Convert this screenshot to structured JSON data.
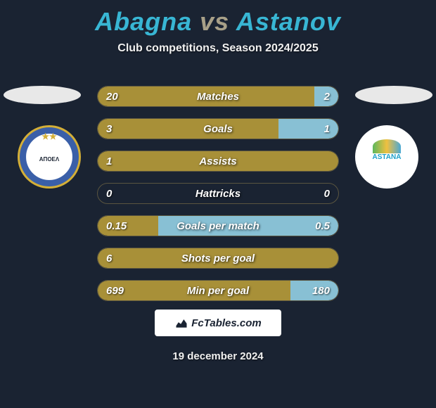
{
  "title": {
    "player1": "Abagna",
    "vs": "vs",
    "player2": "Astanov"
  },
  "subtitle": "Club competitions, Season 2024/2025",
  "colors": {
    "player1_fill": "#a89038",
    "player2_fill": "#88c0d4",
    "bar_border": "#5a5540",
    "background": "#1a2332",
    "title_player": "#38b6d4",
    "title_vs": "#a8a088"
  },
  "clubs": {
    "left_label": "ΑΠΟΕΛ",
    "right_label": "ASTANA"
  },
  "stats": [
    {
      "label": "Matches",
      "left_val": "20",
      "right_val": "2",
      "left_pct": 90,
      "right_pct": 10
    },
    {
      "label": "Goals",
      "left_val": "3",
      "right_val": "1",
      "left_pct": 75,
      "right_pct": 25
    },
    {
      "label": "Assists",
      "left_val": "1",
      "right_val": "",
      "left_pct": 100,
      "right_pct": 0
    },
    {
      "label": "Hattricks",
      "left_val": "0",
      "right_val": "0",
      "left_pct": 0,
      "right_pct": 0
    },
    {
      "label": "Goals per match",
      "left_val": "0.15",
      "right_val": "0.5",
      "left_pct": 25,
      "right_pct": 75
    },
    {
      "label": "Shots per goal",
      "left_val": "6",
      "right_val": "",
      "left_pct": 100,
      "right_pct": 0
    },
    {
      "label": "Min per goal",
      "left_val": "699",
      "right_val": "180",
      "left_pct": 80,
      "right_pct": 20
    }
  ],
  "footer_brand": "FcTables.com",
  "date": "19 december 2024"
}
